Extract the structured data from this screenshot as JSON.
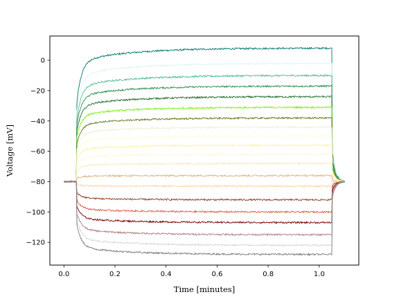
{
  "chart_data": {
    "type": "line",
    "title": "",
    "xlabel": "Time [minutes]",
    "ylabel": "Voltage [mV]",
    "xlim": [
      -0.055,
      1.155
    ],
    "ylim": [
      -135,
      16
    ],
    "xticks": [
      0.0,
      0.2,
      0.4,
      0.6,
      0.8,
      1.0
    ],
    "xtick_labels": [
      "0.0",
      "0.2",
      "0.4",
      "0.6",
      "0.8",
      "1.0"
    ],
    "yticks": [
      0,
      -20,
      -40,
      -60,
      -80,
      -100,
      -120
    ],
    "ytick_labels": [
      "0",
      "−20",
      "−40",
      "−60",
      "−80",
      "−100",
      "−120"
    ],
    "grid": false,
    "legend": "none",
    "protocol": {
      "rest_mV": -80,
      "step_on_min": 0.05,
      "step_off_min": 1.05,
      "end_min": 1.1
    },
    "series": [
      {
        "color": "#00776b",
        "steady_mV": 8
      },
      {
        "color": "#dff5ef",
        "steady_mV": -2
      },
      {
        "color": "#4dbb94",
        "steady_mV": -10
      },
      {
        "color": "#2e8c4a",
        "steady_mV": -17
      },
      {
        "color": "#1e6c2a",
        "steady_mV": -24
      },
      {
        "color": "#7cef12",
        "steady_mV": -31
      },
      {
        "color": "#5e7a1c",
        "steady_mV": -38
      },
      {
        "color": "#efefd6",
        "steady_mV": -44
      },
      {
        "color": "#fdfcd8",
        "steady_mV": -50
      },
      {
        "color": "#fdf3a6",
        "steady_mV": -56
      },
      {
        "color": "#fff6dd",
        "steady_mV": -62
      },
      {
        "color": "#f9e7c4",
        "steady_mV": -68
      },
      {
        "color": "#dcb37e",
        "steady_mV": -76
      },
      {
        "color": "#fbd3a0",
        "steady_mV": -83
      },
      {
        "color": "#8c3b1c",
        "steady_mV": -92
      },
      {
        "color": "#e25b42",
        "steady_mV": -100
      },
      {
        "color": "#7a0000",
        "steady_mV": -107
      },
      {
        "color": "#b07a7a",
        "steady_mV": -115
      },
      {
        "color": "#d6d6d6",
        "steady_mV": -122
      },
      {
        "color": "#7a7a7a",
        "steady_mV": -128
      }
    ]
  }
}
